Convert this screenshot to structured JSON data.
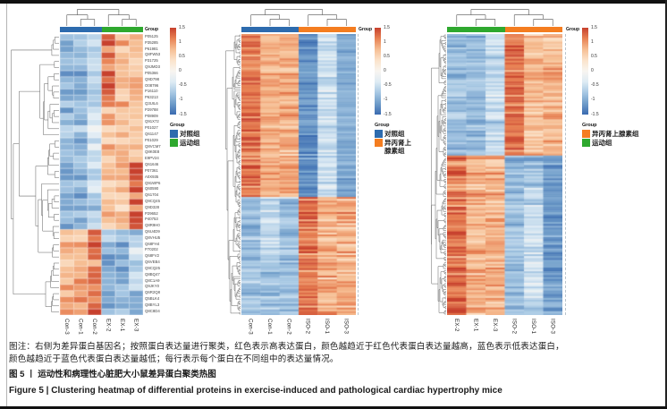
{
  "captions": {
    "note_line1": "图注：右侧为差异蛋白基因名；按照蛋白表达量进行聚类，红色表示高表达蛋白，颜色越趋近于红色代表蛋白表达量越高，蓝色表示低表达蛋白，",
    "note_line2": "颜色越趋近于蓝色代表蛋白表达量越低；每行表示每个蛋白在不同组中的表达量情况。",
    "figure_title_cn": "图 5 丨 运动性和病理性心脏肥大小鼠差异蛋白聚类热图",
    "figure_title_en": "Figure 5 | Clustering heatmap of differential proteins in exercise-induced and pathological cardiac hypertrophy mice"
  },
  "scale": {
    "ticks": [
      "1.5",
      "1",
      "0.5",
      "0",
      "-0.5",
      "-1",
      "-1.5"
    ],
    "palette_low_to_high": [
      "#3A6BB0",
      "#6F9CC9",
      "#A6C7E3",
      "#DEEBF4",
      "#F8F5F0",
      "#FBE3CB",
      "#F6BE93",
      "#E88254",
      "#C7402D"
    ]
  },
  "group_colors": {
    "control": "#2D6BAE",
    "exercise": "#2EA82E",
    "isoproterenol": "#F47D20"
  },
  "chart_data": [
    {
      "type": "heatmap",
      "id": "exercise-vs-control",
      "group_header": "Group",
      "columns": [
        "Con-3",
        "Con-1",
        "Con-2",
        "EX-2",
        "EX-1",
        "EX-3"
      ],
      "col_groups": [
        {
          "label": "对照组",
          "color": "#2D6BAE",
          "n_cols": 3
        },
        {
          "label": "运动组",
          "color": "#2EA82E",
          "n_cols": 3
        }
      ],
      "legend": {
        "title": "Group",
        "items": [
          {
            "label_lines": [
              "对照组"
            ],
            "color": "#2D6BAE"
          },
          {
            "label_lines": [
              "运动组"
            ],
            "color": "#2EA82E"
          }
        ]
      },
      "n_rows": 46,
      "row_labels": [
        "P05125",
        "P35285",
        "P61981",
        "Q8FW53",
        "P31725",
        "Q9JMD3",
        "P05366",
        "Q9D798",
        "O08796",
        "P16110",
        "P63213",
        "Q3UIL6",
        "P29788",
        "P08909",
        "Q91X72",
        "P01027",
        "Q61147",
        "P01029",
        "Q8VCM7",
        "Q8K0E8",
        "E9PV24",
        "Q61646",
        "P07361",
        "A0X935",
        "Q91WP6",
        "Q60590",
        "Q61704",
        "Q9CQ45",
        "Q9D328",
        "P29652",
        "P40753",
        "Q8R9H0",
        "Q6U4D9",
        "Q8VHU5",
        "Q68FH4",
        "P70202",
        "Q68FV2",
        "Q6VEB4",
        "Q9CQ25",
        "Q8BQ47",
        "Q8C1A9",
        "Q9JKY0",
        "Q6R2Q8",
        "Q5BLK4",
        "Q8BYL3",
        "Q8C8D4"
      ],
      "value_range": [
        -1.5,
        1.5
      ],
      "blocks": [
        {
          "r0": 0.0,
          "r1": 0.695,
          "c0": 0,
          "c1": 2,
          "base": -0.95,
          "var": 0.45
        },
        {
          "r0": 0.0,
          "r1": 0.695,
          "c0": 3,
          "c1": 5,
          "base": 0.75,
          "var": 0.5
        },
        {
          "r0": 0.695,
          "r1": 1.0,
          "c0": 0,
          "c1": 2,
          "base": 0.8,
          "var": 0.55
        },
        {
          "r0": 0.695,
          "r1": 1.0,
          "c0": 3,
          "c1": 5,
          "base": -0.95,
          "var": 0.4
        }
      ],
      "col_bias": [
        {
          "col": 2,
          "r0": 0.0,
          "r1": 0.695,
          "delta": 0.35
        },
        {
          "col": 3,
          "r0": 0.0,
          "r1": 0.27,
          "delta": 0.55
        },
        {
          "col": 5,
          "r0": 0.45,
          "r1": 0.695,
          "delta": 0.55
        },
        {
          "col": 2,
          "r0": 0.695,
          "r1": 1.0,
          "delta": 0.45
        },
        {
          "col": 5,
          "r0": 0.75,
          "r1": 0.92,
          "delta": 0.45
        }
      ]
    },
    {
      "type": "heatmap",
      "id": "isoproterenol-vs-control",
      "group_header": "Group",
      "columns": [
        "Con-3",
        "Con-1",
        "Con-2",
        "ISO-2",
        "ISO-1",
        "ISO-3"
      ],
      "col_groups": [
        {
          "label": "对照组",
          "color": "#2D6BAE",
          "n_cols": 3
        },
        {
          "label": "异丙肾上腺素组",
          "color": "#F47D20",
          "n_cols": 3
        }
      ],
      "legend": {
        "title": "Group",
        "items": [
          {
            "label_lines": [
              "对照组"
            ],
            "color": "#2D6BAE"
          },
          {
            "label_lines": [
              "异丙肾上",
              "腺素组"
            ],
            "color": "#F47D20"
          }
        ]
      },
      "n_rows": 150,
      "row_labels": [],
      "value_range": [
        -1.5,
        1.5
      ],
      "blocks": [
        {
          "r0": 0.0,
          "r1": 0.58,
          "c0": 0,
          "c1": 2,
          "base": 0.85,
          "var": 0.45
        },
        {
          "r0": 0.0,
          "r1": 0.58,
          "c0": 3,
          "c1": 5,
          "base": -1.0,
          "var": 0.35
        },
        {
          "r0": 0.58,
          "r1": 1.0,
          "c0": 0,
          "c1": 2,
          "base": -0.85,
          "var": 0.4
        },
        {
          "r0": 0.58,
          "r1": 1.0,
          "c0": 3,
          "c1": 5,
          "base": 0.85,
          "var": 0.5
        }
      ],
      "col_bias": [
        {
          "col": 0,
          "r0": 0.0,
          "r1": 0.58,
          "delta": 0.35
        },
        {
          "col": 3,
          "r0": 0.0,
          "r1": 0.58,
          "delta": -0.25
        },
        {
          "col": 4,
          "r0": 0.0,
          "r1": 0.58,
          "delta": 0.45
        },
        {
          "col": 3,
          "r0": 0.58,
          "r1": 1.0,
          "delta": 0.4
        },
        {
          "col": 1,
          "r0": 0.58,
          "r1": 0.82,
          "delta": 0.3
        }
      ]
    },
    {
      "type": "heatmap",
      "id": "exercise-vs-isoproterenol",
      "group_header": "Group",
      "columns": [
        "EX-2",
        "EX-1",
        "EX-3",
        "ISO-2",
        "ISO-1",
        "ISO-3"
      ],
      "col_groups": [
        {
          "label": "运动组",
          "color": "#2EA82E",
          "n_cols": 3
        },
        {
          "label": "异丙肾上腺素组",
          "color": "#F47D20",
          "n_cols": 3
        }
      ],
      "legend": {
        "title": "Group",
        "items": [
          {
            "label_lines": [
              "异丙肾上腺素组"
            ],
            "color": "#F47D20"
          },
          {
            "label_lines": [
              "运动组"
            ],
            "color": "#2EA82E"
          }
        ]
      },
      "n_rows": 148,
      "row_labels": [],
      "value_range": [
        -1.5,
        1.5
      ],
      "blocks": [
        {
          "r0": 0.0,
          "r1": 0.43,
          "c0": 0,
          "c1": 2,
          "base": -0.9,
          "var": 0.4
        },
        {
          "r0": 0.0,
          "r1": 0.43,
          "c0": 3,
          "c1": 5,
          "base": 0.8,
          "var": 0.5
        },
        {
          "r0": 0.43,
          "r1": 1.0,
          "c0": 0,
          "c1": 2,
          "base": 0.85,
          "var": 0.5
        },
        {
          "r0": 0.43,
          "r1": 1.0,
          "c0": 3,
          "c1": 5,
          "base": -0.9,
          "var": 0.4
        }
      ],
      "col_bias": [
        {
          "col": 3,
          "r0": 0.0,
          "r1": 0.43,
          "delta": 0.5
        },
        {
          "col": 2,
          "r0": 0.0,
          "r1": 0.43,
          "delta": 0.3
        },
        {
          "col": 0,
          "r0": 0.43,
          "r1": 1.0,
          "delta": 0.4
        },
        {
          "col": 5,
          "r0": 0.43,
          "r1": 1.0,
          "delta": -0.3
        },
        {
          "col": 4,
          "r0": 0.55,
          "r1": 0.95,
          "delta": 0.35
        }
      ]
    }
  ]
}
